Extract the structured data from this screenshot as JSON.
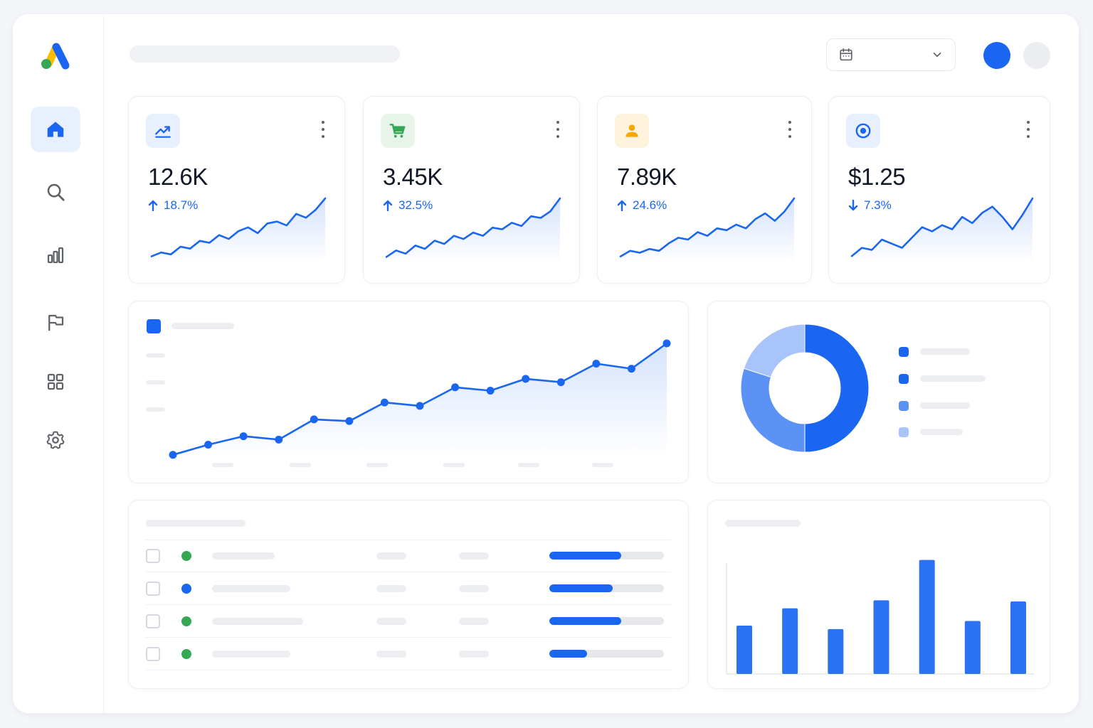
{
  "colors": {
    "primary": "#1a66f0",
    "primary_light": "#5b92f4",
    "primary_lighter": "#a8c4fa",
    "green": "#34a853",
    "yellow": "#fbbc04",
    "placeholder": "#eceef1"
  },
  "sidebar": {
    "logo": "google-ads-logo",
    "items": [
      {
        "icon": "home-icon",
        "active": true
      },
      {
        "icon": "search-icon",
        "active": false
      },
      {
        "icon": "bar-chart-icon",
        "active": false
      },
      {
        "icon": "flag-icon",
        "active": false
      },
      {
        "icon": "grid-icon",
        "active": false
      },
      {
        "icon": "settings-icon",
        "active": false
      }
    ]
  },
  "header": {
    "date_picker_icon": "calendar-icon",
    "dropdown_icon": "chevron-down-icon"
  },
  "stats": [
    {
      "icon": "trending-up-icon",
      "value": "12.6K",
      "delta": "18.7%",
      "direction": "up",
      "trend": [
        2,
        4,
        3,
        7,
        6,
        10,
        9,
        13,
        11,
        15,
        17,
        14,
        19,
        20,
        18,
        24,
        22,
        26,
        32
      ]
    },
    {
      "icon": "cart-icon",
      "value": "3.45K",
      "delta": "32.5%",
      "direction": "up",
      "trend": [
        2,
        6,
        4,
        9,
        7,
        12,
        10,
        15,
        13,
        17,
        15,
        20,
        19,
        23,
        21,
        27,
        26,
        30,
        38
      ]
    },
    {
      "icon": "person-icon",
      "value": "7.89K",
      "delta": "24.6%",
      "direction": "up",
      "trend": [
        2,
        5,
        4,
        6,
        5,
        9,
        12,
        11,
        15,
        13,
        17,
        16,
        19,
        17,
        22,
        25,
        21,
        26,
        33
      ]
    },
    {
      "icon": "target-icon",
      "value": "$1.25",
      "delta": "7.3%",
      "direction": "down",
      "trend": [
        2,
        6,
        5,
        10,
        8,
        6,
        11,
        16,
        14,
        17,
        15,
        21,
        18,
        23,
        26,
        21,
        15,
        22,
        30
      ]
    }
  ],
  "chart_data": [
    {
      "type": "line",
      "x": [
        1,
        2,
        3,
        4,
        5,
        6,
        7,
        8,
        9,
        10,
        11,
        12,
        13,
        14,
        15
      ],
      "series": [
        {
          "values": [
            6,
            12,
            17,
            15,
            27,
            26,
            37,
            35,
            46,
            44,
            51,
            49,
            60,
            57,
            72
          ]
        }
      ],
      "ylim": [
        0,
        80
      ],
      "grid": false
    },
    {
      "type": "pie",
      "values": [
        50,
        30,
        20
      ],
      "colors": [
        "#1a66f0",
        "#5b92f4",
        "#a8c4fa"
      ],
      "legend": "right"
    },
    {
      "type": "bar",
      "values": [
        42,
        57,
        39,
        64,
        99,
        46,
        63
      ],
      "ylim": [
        0,
        100
      ]
    }
  ],
  "table": {
    "rows": [
      {
        "status_color": "#34a853",
        "progress": 0.63
      },
      {
        "status_color": "#1a66f0",
        "progress": 0.55
      },
      {
        "status_color": "#34a853",
        "progress": 0.63
      },
      {
        "status_color": "#34a853",
        "progress": 0.33
      }
    ]
  }
}
